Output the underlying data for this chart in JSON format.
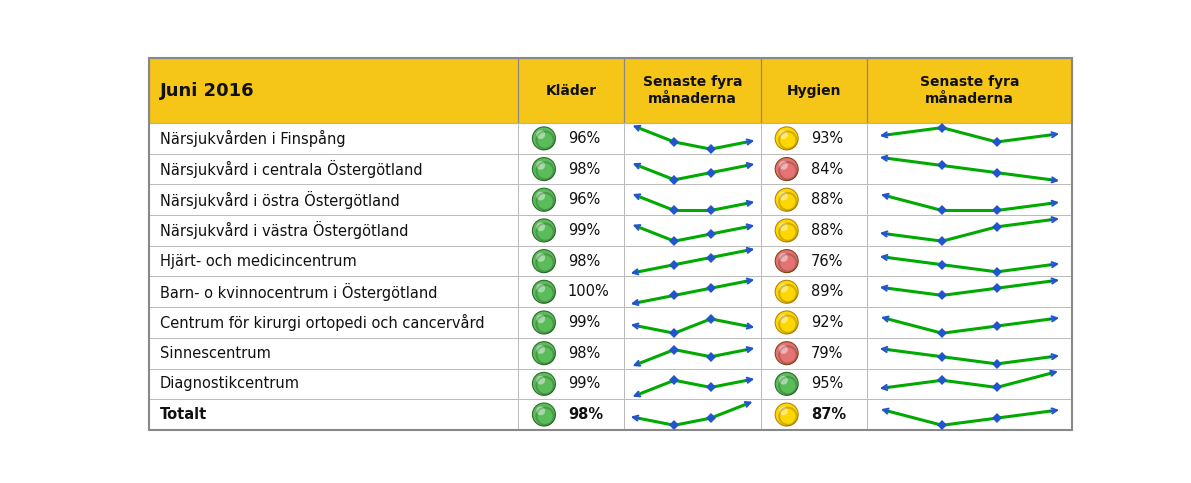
{
  "title": "Juni 2016",
  "header_bg": "#F5C518",
  "col_headers": [
    "Kläder",
    "Senaste fyra\nmånaderna",
    "Hygien",
    "Senaste fyra\nmånaderna"
  ],
  "rows": [
    {
      "label": "Närsjukvården i Finspång",
      "klader_pct": "96%",
      "klader_color": "#5BBD5A",
      "hygien_pct": "93%",
      "hygien_color": "#FFD700",
      "klader_trend": [
        3,
        1,
        0,
        1
      ],
      "hygien_trend": [
        2,
        3,
        1,
        2
      ]
    },
    {
      "label": "Närsjukvård i centrala Östergötland",
      "klader_pct": "98%",
      "klader_color": "#5BBD5A",
      "hygien_pct": "84%",
      "hygien_color": "#E57373",
      "klader_trend": [
        2,
        0,
        1,
        2
      ],
      "hygien_trend": [
        3,
        2,
        1,
        0
      ]
    },
    {
      "label": "Närsjukvård i östra Östergötland",
      "klader_pct": "96%",
      "klader_color": "#5BBD5A",
      "hygien_pct": "88%",
      "hygien_color": "#FFD700",
      "klader_trend": [
        2,
        0,
        0,
        1
      ],
      "hygien_trend": [
        2,
        0,
        0,
        1
      ]
    },
    {
      "label": "Närsjukvård i västra Östergötland",
      "klader_pct": "99%",
      "klader_color": "#5BBD5A",
      "hygien_pct": "88%",
      "hygien_color": "#FFD700",
      "klader_trend": [
        2,
        0,
        1,
        2
      ],
      "hygien_trend": [
        1,
        0,
        2,
        3
      ]
    },
    {
      "label": "Hjärt- och medicincentrum",
      "klader_pct": "98%",
      "klader_color": "#5BBD5A",
      "hygien_pct": "76%",
      "hygien_color": "#E57373",
      "klader_trend": [
        0,
        1,
        2,
        3
      ],
      "hygien_trend": [
        2,
        1,
        0,
        1
      ]
    },
    {
      "label": "Barn- o kvinnocentrum i Östergötland",
      "klader_pct": "100%",
      "klader_color": "#5BBD5A",
      "hygien_pct": "89%",
      "hygien_color": "#FFD700",
      "klader_trend": [
        0,
        1,
        2,
        3
      ],
      "hygien_trend": [
        2,
        1,
        2,
        3
      ]
    },
    {
      "label": "Centrum för kirurgi ortopedi och cancervård",
      "klader_pct": "99%",
      "klader_color": "#5BBD5A",
      "hygien_pct": "92%",
      "hygien_color": "#FFD700",
      "klader_trend": [
        1,
        0,
        2,
        1
      ],
      "hygien_trend": [
        2,
        0,
        1,
        2
      ]
    },
    {
      "label": "Sinnescentrum",
      "klader_pct": "98%",
      "klader_color": "#5BBD5A",
      "hygien_pct": "79%",
      "hygien_color": "#E57373",
      "klader_trend": [
        0,
        2,
        1,
        2
      ],
      "hygien_trend": [
        2,
        1,
        0,
        1
      ]
    },
    {
      "label": "Diagnostikcentrum",
      "klader_pct": "99%",
      "klader_color": "#5BBD5A",
      "hygien_pct": "95%",
      "hygien_color": "#5BBD5A",
      "klader_trend": [
        0,
        2,
        1,
        2
      ],
      "hygien_trend": [
        1,
        2,
        1,
        3
      ]
    },
    {
      "label": "Totalt",
      "klader_pct": "98%",
      "klader_color": "#5BBD5A",
      "hygien_pct": "87%",
      "hygien_color": "#FFD700",
      "klader_trend": [
        1,
        0,
        1,
        3
      ],
      "hygien_trend": [
        2,
        0,
        1,
        2
      ],
      "bold": true
    }
  ],
  "figsize": [
    11.91,
    4.83
  ],
  "dpi": 100
}
